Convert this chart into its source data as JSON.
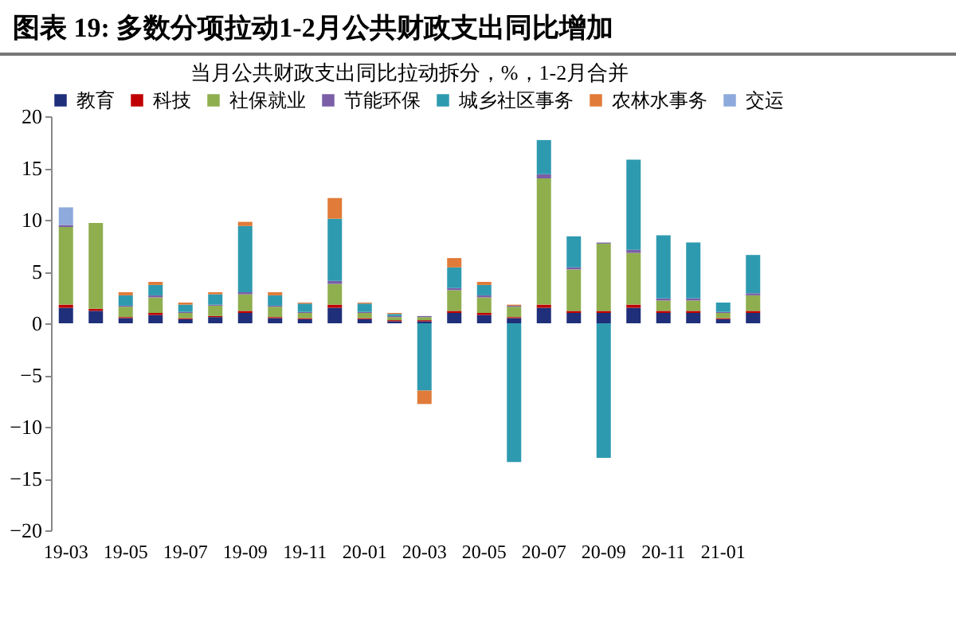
{
  "chart_data": {
    "type": "bar",
    "stacked": true,
    "title": "图表 19:  多数分项拉动1-2月公共财政支出同比增加",
    "subtitle": "当月公共财政支出同比拉动拆分，%，1-2月合并",
    "categories": [
      "19-03",
      null,
      "19-05",
      null,
      "19-07",
      null,
      "19-09",
      null,
      "19-11",
      null,
      "20-01",
      null,
      "20-03",
      null,
      "20-05",
      null,
      "20-07",
      null,
      "20-09",
      null,
      "20-11",
      null,
      "21-01",
      null
    ],
    "series": [
      {
        "name": "教育",
        "color": "#1f2f7a",
        "values": [
          1.5,
          1.2,
          0.5,
          0.8,
          0.4,
          0.6,
          1.0,
          0.5,
          0.4,
          1.5,
          0.4,
          0.2,
          0.2,
          1.0,
          0.8,
          0.5,
          1.5,
          1.0,
          1.0,
          1.5,
          1.0,
          1.0,
          0.4,
          1.0
        ]
      },
      {
        "name": "科技",
        "color": "#c00000",
        "values": [
          0.3,
          0.2,
          0.1,
          0.2,
          0.1,
          0.1,
          0.2,
          0.1,
          0.1,
          0.3,
          0.1,
          0.1,
          0.1,
          0.2,
          0.2,
          0.1,
          0.3,
          0.2,
          0.2,
          0.3,
          0.2,
          0.2,
          0.1,
          0.2
        ]
      },
      {
        "name": "社保就业",
        "color": "#8faf4f",
        "values": [
          7.5,
          8.3,
          1.0,
          1.5,
          0.5,
          1.0,
          1.6,
          1.0,
          0.5,
          2.0,
          0.5,
          0.3,
          0.3,
          2.0,
          1.5,
          1.0,
          12.2,
          4.0,
          6.5,
          5.0,
          1.0,
          1.0,
          0.5,
          1.5
        ]
      },
      {
        "name": "节能环保",
        "color": "#7b5ea7",
        "values": [
          0.2,
          0,
          0.1,
          0.2,
          0.1,
          0.1,
          0.2,
          0.1,
          0.1,
          0.3,
          0.1,
          0.1,
          0.1,
          0.2,
          0.2,
          0.1,
          0.4,
          0.2,
          0.1,
          0.3,
          0.2,
          0.2,
          0.1,
          0.2
        ]
      },
      {
        "name": "城乡社区事务",
        "color": "#2e9ab0",
        "values": [
          0,
          0,
          1.0,
          1.0,
          0.7,
          1.0,
          6.4,
          1.0,
          0.8,
          6.0,
          0.8,
          0.2,
          -6.5,
          2.0,
          1.0,
          -13.4,
          3.3,
          3.0,
          -13.0,
          8.7,
          6.1,
          5.4,
          0.9,
          3.7
        ]
      },
      {
        "name": "农林水事务",
        "color": "#e07b39",
        "values": [
          0,
          0,
          0.3,
          0.3,
          0.2,
          0.2,
          0.4,
          0.3,
          0.1,
          2.0,
          0.1,
          0.1,
          -1.3,
          0.9,
          0.3,
          0.1,
          0,
          0,
          0,
          0,
          0,
          0,
          0,
          0
        ]
      },
      {
        "name": "交运",
        "color": "#8ea9db",
        "values": [
          1.7,
          0,
          0,
          0,
          0,
          0,
          0,
          0,
          0,
          0,
          0,
          0,
          0,
          0,
          0,
          0,
          0,
          0,
          0,
          0,
          0,
          0,
          0,
          0
        ]
      }
    ],
    "ylim": [
      -20,
      20
    ],
    "yticks": [
      -20,
      -15,
      -10,
      -5,
      0,
      5,
      10,
      15,
      20
    ],
    "legend": "top"
  }
}
